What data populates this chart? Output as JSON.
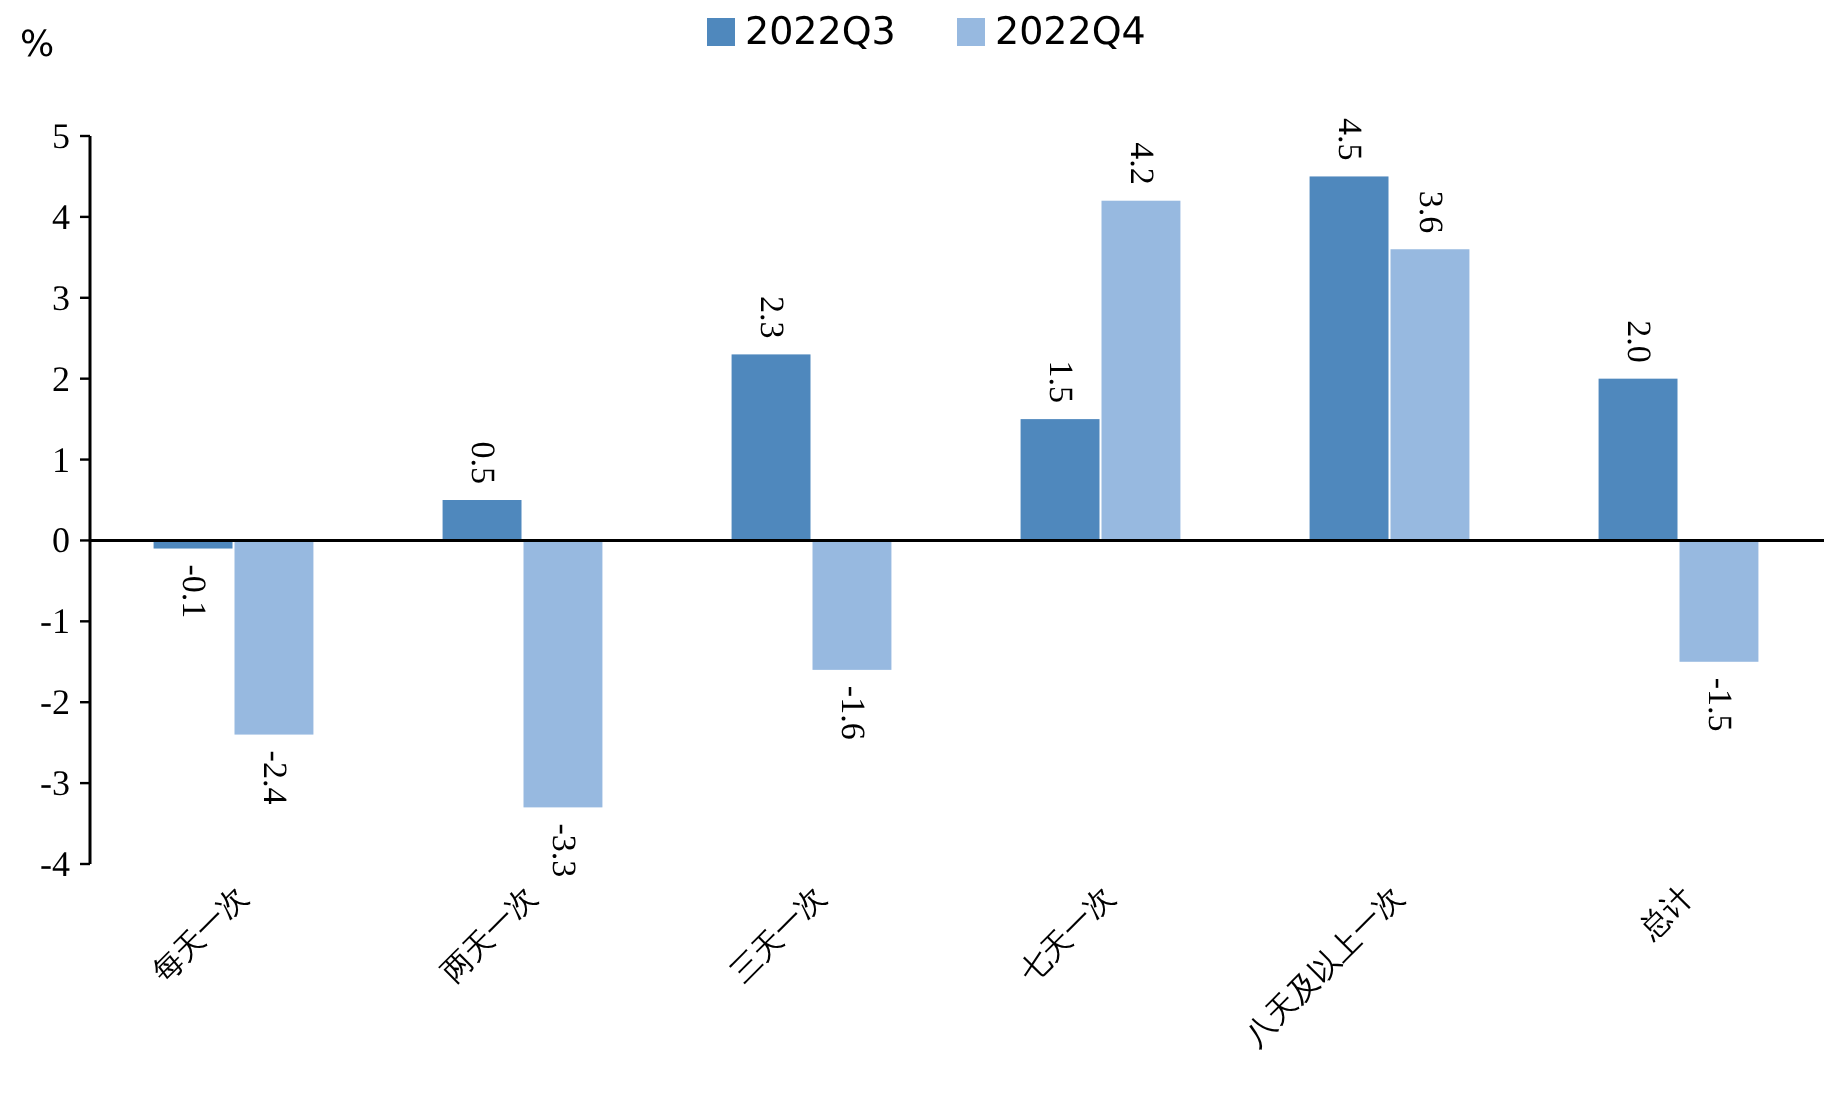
{
  "chart_data": {
    "type": "bar",
    "ylabel": "%",
    "categories": [
      "每天一次",
      "两天一次",
      "三天一次",
      "七天一次",
      "八天及以上一次",
      "总计"
    ],
    "series": [
      {
        "name": "2022Q3",
        "color": "#4f88bd",
        "values": [
          -0.1,
          0.5,
          2.3,
          1.5,
          4.5,
          2.0
        ],
        "value_labels": [
          "-0.1",
          "0.5",
          "2.3",
          "1.5",
          "4.5",
          "2.0"
        ]
      },
      {
        "name": "2022Q4",
        "color": "#97b9e0",
        "values": [
          -2.4,
          -3.3,
          -1.6,
          4.2,
          3.6,
          -1.5
        ],
        "value_labels": [
          "-2.4",
          "-3.3",
          "-1.6",
          "4.2",
          "3.6",
          "-1.5"
        ]
      }
    ],
    "ylim": [
      -4,
      5
    ],
    "yticks": [
      -4,
      -3,
      -2,
      -1,
      0,
      1,
      2,
      3,
      4,
      5
    ],
    "legend": "top"
  }
}
